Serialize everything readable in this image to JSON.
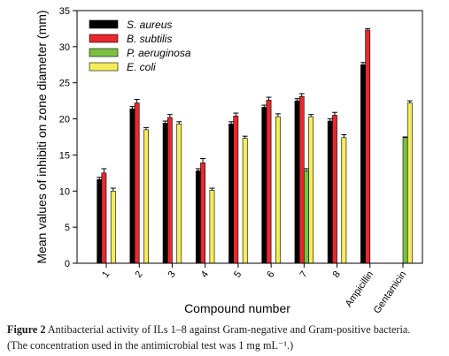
{
  "chart_data": {
    "type": "bar",
    "xlabel": "Compound number",
    "ylabel": "Mean values of inhibiti   on zone diameter (mm)",
    "ylim": [
      0,
      35
    ],
    "yticks": [
      0,
      5,
      10,
      15,
      20,
      25,
      30,
      35
    ],
    "categories": [
      "1",
      "2",
      "3",
      "4",
      "5",
      "6",
      "7",
      "8",
      "Ampicillin",
      "Gentamicin"
    ],
    "legend_placement": "top-left",
    "grid": false,
    "series": [
      {
        "name": "S. aureus",
        "color": "#000000",
        "values": [
          11.6,
          21.4,
          19.4,
          12.8,
          19.3,
          21.6,
          22.5,
          19.7,
          27.5,
          null
        ],
        "errors": [
          0.3,
          0.3,
          0.3,
          0.3,
          0.3,
          0.3,
          0.3,
          0.3,
          0.3,
          null
        ]
      },
      {
        "name": "B. subtilis",
        "color": "#e8282d",
        "values": [
          12.5,
          22.2,
          20.2,
          13.9,
          20.4,
          22.6,
          23.1,
          20.5,
          32.3,
          null
        ],
        "errors": [
          0.6,
          0.5,
          0.4,
          0.6,
          0.4,
          0.4,
          0.4,
          0.4,
          0.2,
          null
        ]
      },
      {
        "name": "P. aeruginosa",
        "color": "#7ac143",
        "values": [
          null,
          null,
          null,
          null,
          null,
          null,
          12.8,
          null,
          null,
          17.4
        ],
        "errors": [
          null,
          null,
          null,
          null,
          null,
          null,
          0.3,
          null,
          null,
          0.1
        ]
      },
      {
        "name": "E. coli",
        "color": "#f5ec5a",
        "values": [
          10.0,
          18.5,
          19.3,
          10.1,
          17.3,
          20.3,
          20.3,
          17.4,
          null,
          22.2
        ],
        "errors": [
          0.4,
          0.3,
          0.3,
          0.3,
          0.3,
          0.4,
          0.3,
          0.4,
          null,
          0.3
        ]
      }
    ]
  },
  "caption": {
    "label": "Figure 2",
    "line1": "Antibacterial activity of ILs 1–8 against Gram-negative and Gram-positive bacteria.",
    "line2": "(The concentration used in the antimicrobial test was 1 mg mL⁻¹.)"
  }
}
